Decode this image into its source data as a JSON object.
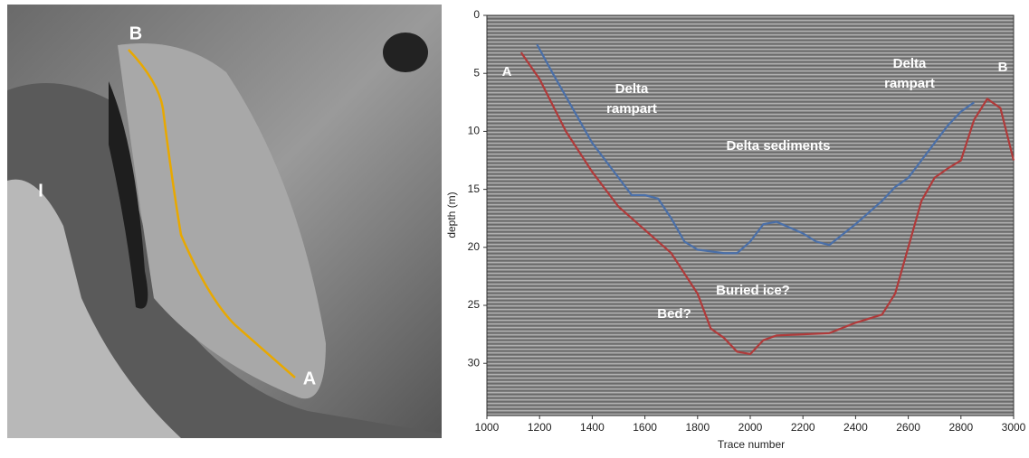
{
  "image": {
    "labels": [
      "B",
      "I",
      "A"
    ]
  },
  "chart_data": {
    "type": "line",
    "xlabel": "Trace number",
    "ylabel": "depth (m)",
    "xlim": [
      1000,
      3000
    ],
    "xticks": [
      1000,
      1200,
      1400,
      1600,
      1800,
      2000,
      2200,
      2400,
      2600,
      2800,
      3000
    ],
    "ylim": [
      0,
      34.5
    ],
    "yticks": [
      0,
      5,
      10,
      15,
      20,
      25,
      30
    ],
    "y_inverted": true,
    "annotations": [
      "A",
      "B",
      "Delta rampart",
      "Delta rampart",
      "Delta sediments",
      "Buried ice?",
      "Bed?"
    ],
    "series": [
      {
        "color": "#4a6fa8",
        "x": [
          1190,
          1250,
          1300,
          1400,
          1500,
          1550,
          1600,
          1650,
          1700,
          1750,
          1800,
          1900,
          1950,
          2000,
          2050,
          2100,
          2200,
          2250,
          2300,
          2400,
          2450,
          2500,
          2550,
          2600,
          2650,
          2700,
          2750,
          2800,
          2850
        ],
        "values": [
          2.5,
          5,
          7,
          11,
          14,
          15.5,
          15.5,
          15.8,
          17.5,
          19.5,
          20.2,
          20.5,
          20.5,
          19.5,
          18,
          17.8,
          18.8,
          19.5,
          19.8,
          18,
          17,
          16,
          14.8,
          14,
          12.5,
          11,
          9.5,
          8.3,
          7.5
        ]
      },
      {
        "color": "#b03a3a",
        "x": [
          1130,
          1200,
          1300,
          1400,
          1500,
          1600,
          1700,
          1800,
          1850,
          1900,
          1950,
          2000,
          2050,
          2100,
          2200,
          2300,
          2400,
          2500,
          2550,
          2600,
          2650,
          2700,
          2750,
          2800,
          2850,
          2900,
          2950,
          3000
        ],
        "values": [
          3.2,
          5.5,
          10,
          13.5,
          16.5,
          18.5,
          20.5,
          24,
          27,
          27.8,
          29,
          29.2,
          28,
          27.6,
          27.5,
          27.4,
          26.5,
          25.8,
          24,
          20,
          16,
          14,
          13.2,
          12.5,
          9,
          7.2,
          8,
          12.5
        ]
      }
    ]
  }
}
